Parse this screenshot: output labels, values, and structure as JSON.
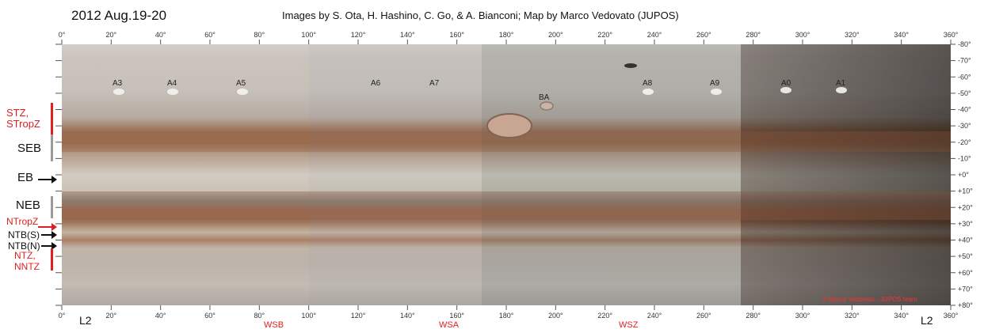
{
  "header": {
    "title": "2012 Aug.19-20",
    "credits": "Images by S. Ota, H. Hashino, C. Go, & A. Bianconi;  Map by Marco Vedovato (JUPOS)"
  },
  "axes": {
    "longitude_ticks": [
      "0°",
      "20°",
      "40°",
      "60°",
      "80°",
      "100°",
      "120°",
      "140°",
      "160°",
      "180°",
      "200°",
      "220°",
      "240°",
      "260°",
      "280°",
      "300°",
      "320°",
      "340°",
      "360°"
    ],
    "latitude_ticks": [
      "-80°",
      "-70°",
      "-60°",
      "-50°",
      "-40°",
      "-30°",
      "-20°",
      "-10°",
      "+0°",
      "+10°",
      "+20°",
      "+30°",
      "+40°",
      "+50°",
      "+60°",
      "+70°",
      "+80°"
    ],
    "system_label_left": "L2",
    "system_label_right": "L2"
  },
  "zones": {
    "stz": "STZ,",
    "stropz": "STropZ",
    "seb": "SEB",
    "eb": "EB",
    "neb": "NEB",
    "ntropz": "NTropZ",
    "ntb_s": "NTB(S)",
    "ntb_n": "NTB(N)",
    "ntz": "NTZ,",
    "nntz": "NNTZ"
  },
  "features": [
    "A3",
    "A4",
    "A5",
    "A6",
    "A7",
    "BA",
    "A8",
    "A9",
    "A0",
    "A1"
  ],
  "regions": {
    "wsb": "WSB",
    "wsa": "WSA",
    "wsz": "WSZ"
  },
  "watermark": "© Marco Vedovato - JUPOS team",
  "colors": {
    "red_label": "#e02020",
    "grey_bar": "#9a9a9a"
  }
}
